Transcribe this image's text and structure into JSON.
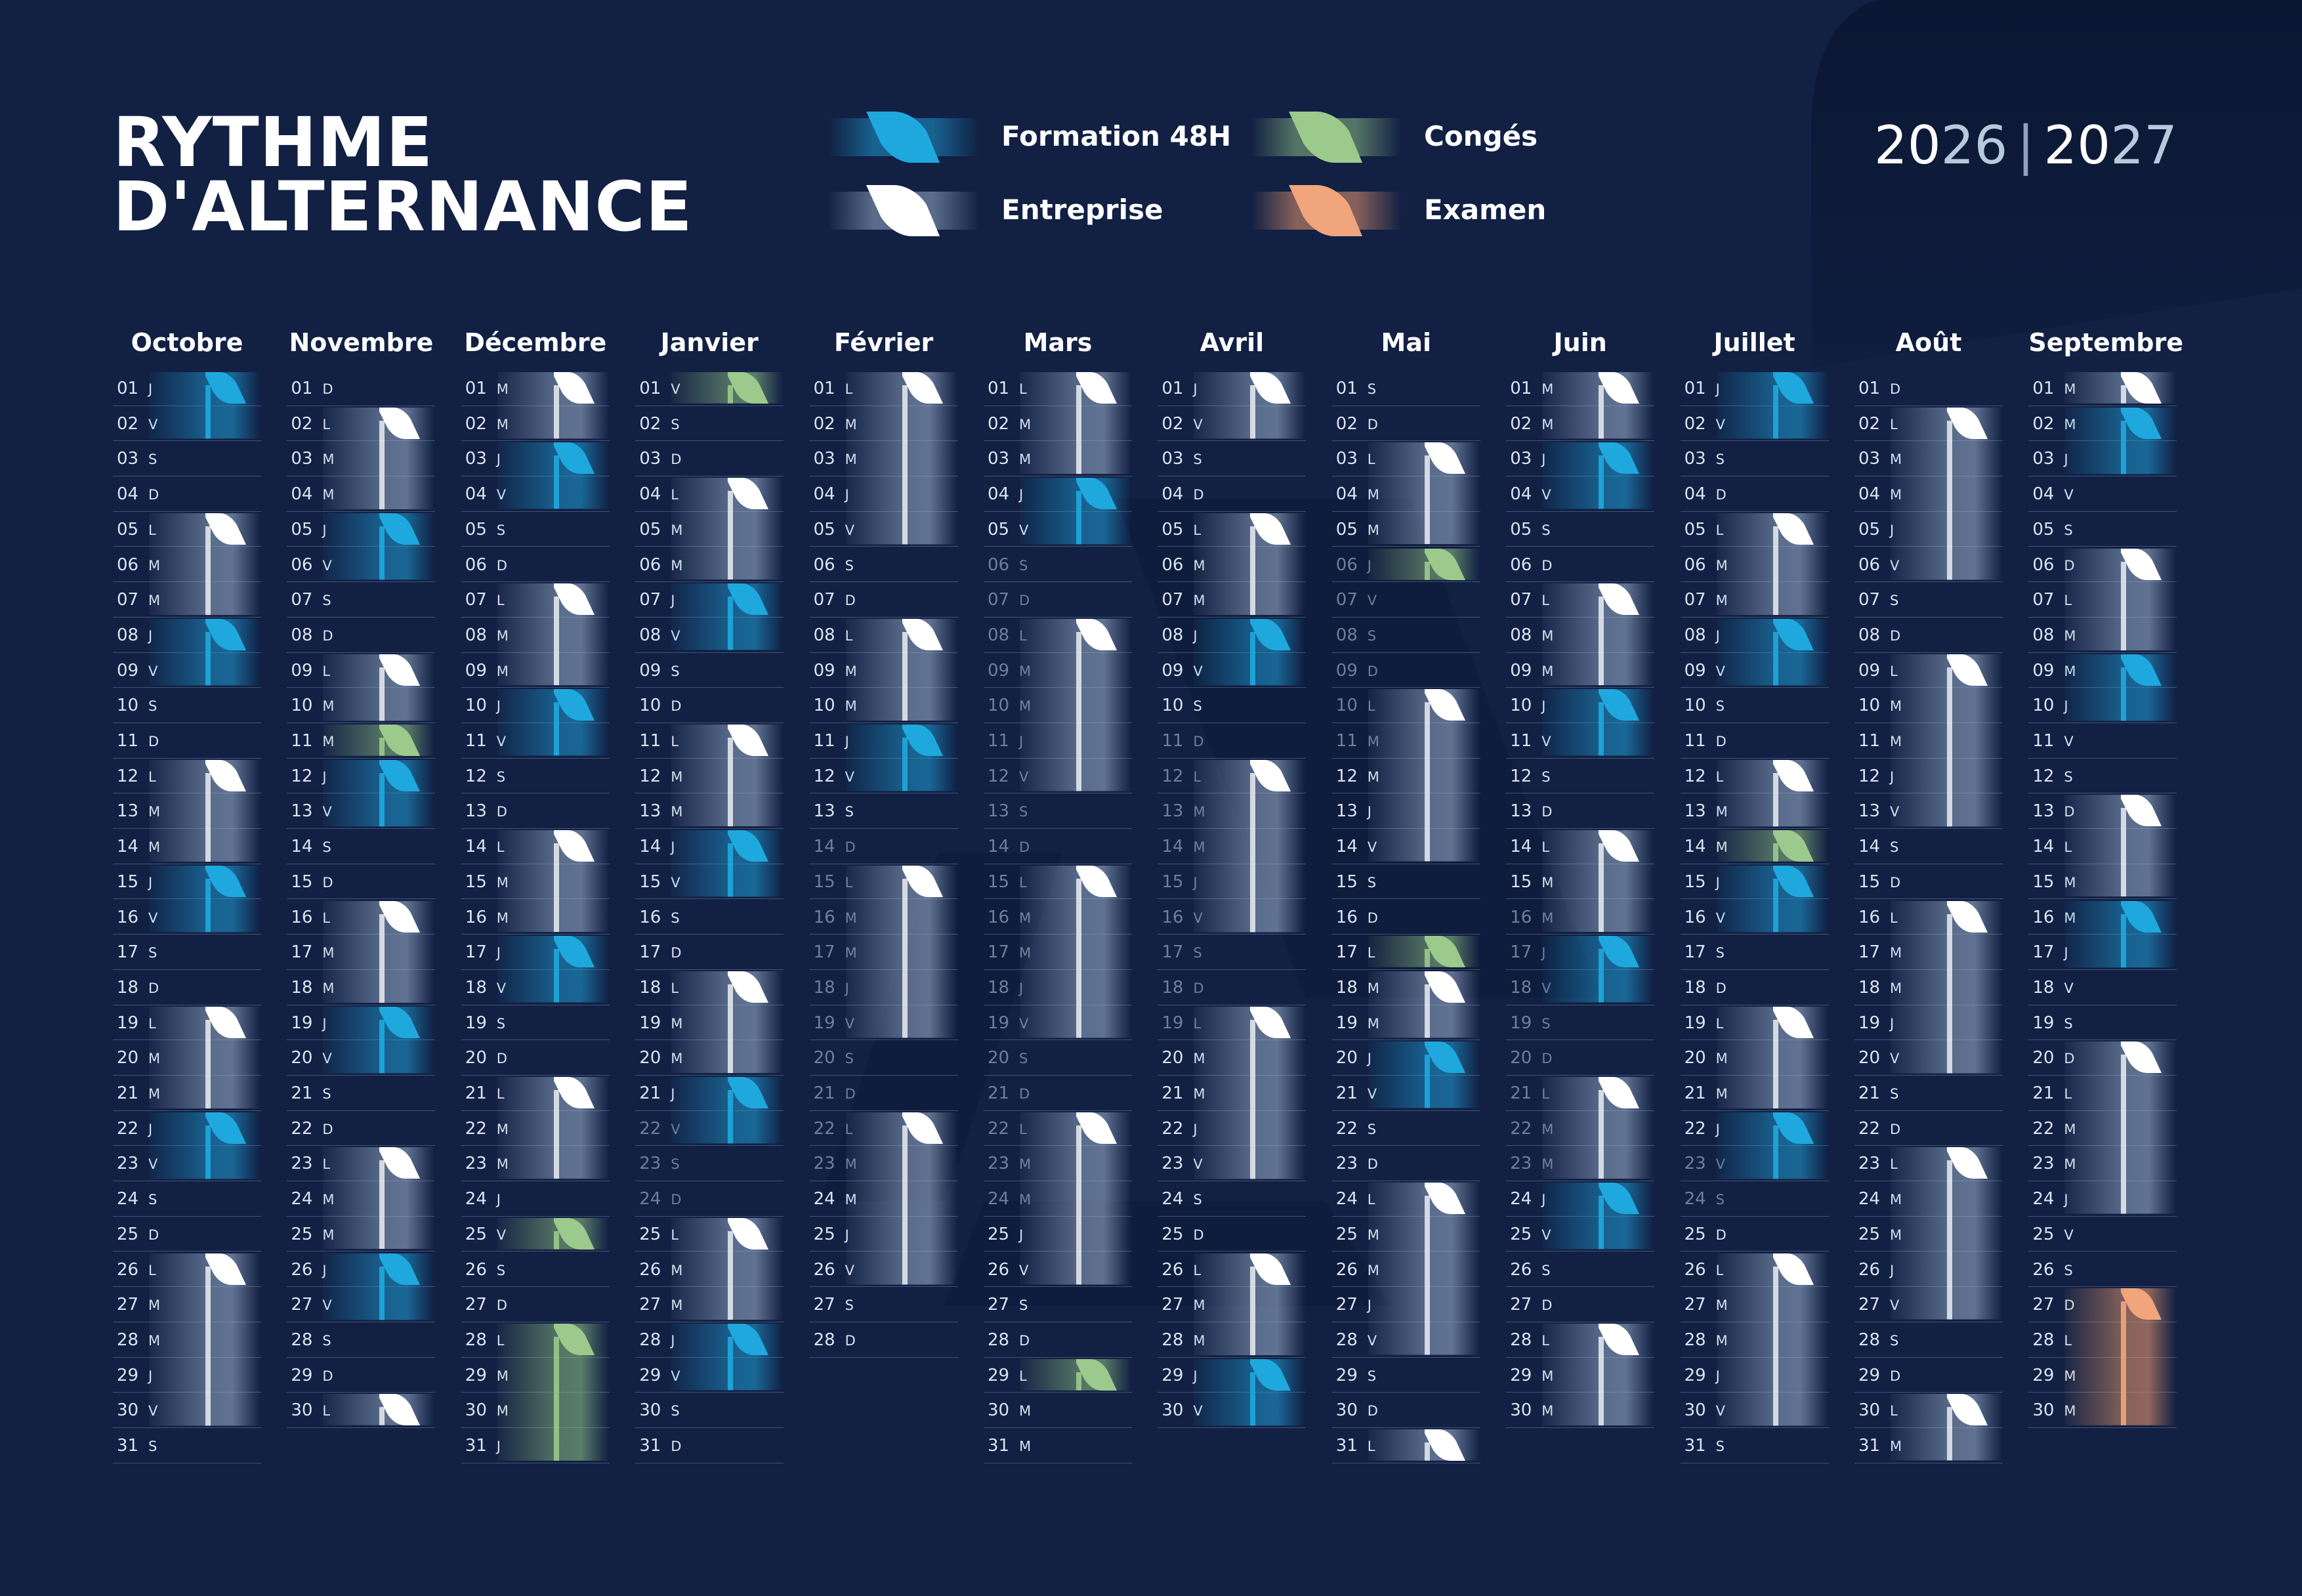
{
  "title": {
    "line1": "RYTHME",
    "line2": "D'ALTERNANCE"
  },
  "years": {
    "a_head": "20",
    "a_tail": "26",
    "separator": "|",
    "b_head": "20",
    "b_tail": "27"
  },
  "legend": [
    {
      "key": "formation",
      "label": "Formation 48H",
      "color": "#1fa8dd"
    },
    {
      "key": "conges",
      "label": "Congés",
      "color": "#9cc98c"
    },
    {
      "key": "entreprise",
      "label": "Entreprise",
      "color": "#ffffff"
    },
    {
      "key": "examen",
      "label": "Examen",
      "color": "#f0a57c"
    }
  ],
  "months": [
    {
      "name": "Octobre",
      "start": 4,
      "days": 31,
      "periods": [
        {
          "type": "F",
          "start": 1,
          "len": 2
        },
        {
          "type": "E",
          "start": 5,
          "len": 3
        },
        {
          "type": "F",
          "start": 8,
          "len": 2
        },
        {
          "type": "E",
          "start": 12,
          "len": 3
        },
        {
          "type": "F",
          "start": 15,
          "len": 2
        },
        {
          "type": "E",
          "start": 19,
          "len": 3
        },
        {
          "type": "F",
          "start": 22,
          "len": 2
        },
        {
          "type": "E",
          "start": 26,
          "len": 5
        }
      ],
      "dim": []
    },
    {
      "name": "Novembre",
      "start": 0,
      "days": 30,
      "periods": [
        {
          "type": "E",
          "start": 2,
          "len": 3
        },
        {
          "type": "F",
          "start": 5,
          "len": 2
        },
        {
          "type": "E",
          "start": 9,
          "len": 2
        },
        {
          "type": "C",
          "start": 11,
          "len": 1
        },
        {
          "type": "F",
          "start": 12,
          "len": 2
        },
        {
          "type": "E",
          "start": 16,
          "len": 3
        },
        {
          "type": "F",
          "start": 19,
          "len": 2
        },
        {
          "type": "E",
          "start": 23,
          "len": 3
        },
        {
          "type": "F",
          "start": 26,
          "len": 2
        },
        {
          "type": "E",
          "start": 30,
          "len": 1
        }
      ],
      "dim": []
    },
    {
      "name": "Décembre",
      "start": 2,
      "days": 31,
      "periods": [
        {
          "type": "E",
          "start": 1,
          "len": 2
        },
        {
          "type": "F",
          "start": 3,
          "len": 2
        },
        {
          "type": "E",
          "start": 7,
          "len": 3
        },
        {
          "type": "F",
          "start": 10,
          "len": 2
        },
        {
          "type": "E",
          "start": 14,
          "len": 3
        },
        {
          "type": "F",
          "start": 17,
          "len": 2
        },
        {
          "type": "E",
          "start": 21,
          "len": 3
        },
        {
          "type": "C",
          "start": 25,
          "len": 1
        },
        {
          "type": "C",
          "start": 28,
          "len": 4
        }
      ],
      "dim": []
    },
    {
      "name": "Janvier",
      "start": 5,
      "days": 31,
      "periods": [
        {
          "type": "C",
          "start": 1,
          "len": 1
        },
        {
          "type": "E",
          "start": 4,
          "len": 3
        },
        {
          "type": "F",
          "start": 7,
          "len": 2
        },
        {
          "type": "E",
          "start": 11,
          "len": 3
        },
        {
          "type": "F",
          "start": 14,
          "len": 2
        },
        {
          "type": "E",
          "start": 18,
          "len": 3
        },
        {
          "type": "F",
          "start": 21,
          "len": 2
        },
        {
          "type": "E",
          "start": 25,
          "len": 3
        },
        {
          "type": "F",
          "start": 28,
          "len": 2
        }
      ],
      "dim": [
        22,
        23,
        24
      ]
    },
    {
      "name": "Février",
      "start": 1,
      "days": 28,
      "periods": [
        {
          "type": "E",
          "start": 1,
          "len": 5
        },
        {
          "type": "E",
          "start": 8,
          "len": 3
        },
        {
          "type": "F",
          "start": 11,
          "len": 2
        },
        {
          "type": "E",
          "start": 15,
          "len": 5
        },
        {
          "type": "E",
          "start": 22,
          "len": 5
        }
      ],
      "dim": [
        14,
        15,
        16,
        17,
        18,
        19,
        20,
        21,
        22,
        23
      ]
    },
    {
      "name": "Mars",
      "start": 1,
      "days": 31,
      "periods": [
        {
          "type": "E",
          "start": 1,
          "len": 3
        },
        {
          "type": "F",
          "start": 4,
          "len": 2
        },
        {
          "type": "E",
          "start": 8,
          "len": 5
        },
        {
          "type": "E",
          "start": 15,
          "len": 5
        },
        {
          "type": "E",
          "start": 22,
          "len": 5
        },
        {
          "type": "C",
          "start": 29,
          "len": 1
        }
      ],
      "dim": [
        6,
        7,
        8,
        9,
        10,
        11,
        12,
        13,
        14,
        15,
        16,
        17,
        18,
        19,
        20,
        21,
        22,
        23,
        24
      ]
    },
    {
      "name": "Avril",
      "start": 4,
      "days": 30,
      "periods": [
        {
          "type": "E",
          "start": 1,
          "len": 2
        },
        {
          "type": "E",
          "start": 5,
          "len": 3
        },
        {
          "type": "F",
          "start": 8,
          "len": 2
        },
        {
          "type": "E",
          "start": 12,
          "len": 5
        },
        {
          "type": "E",
          "start": 19,
          "len": 5
        },
        {
          "type": "E",
          "start": 26,
          "len": 3
        },
        {
          "type": "F",
          "start": 29,
          "len": 2
        }
      ],
      "dim": [
        11,
        12,
        13,
        14,
        15,
        16,
        17,
        18,
        19
      ]
    },
    {
      "name": "Mai",
      "start": 6,
      "days": 31,
      "periods": [
        {
          "type": "E",
          "start": 3,
          "len": 3
        },
        {
          "type": "C",
          "start": 6,
          "len": 1
        },
        {
          "type": "E",
          "start": 10,
          "len": 5
        },
        {
          "type": "C",
          "start": 17,
          "len": 1
        },
        {
          "type": "E",
          "start": 18,
          "len": 2
        },
        {
          "type": "F",
          "start": 20,
          "len": 2
        },
        {
          "type": "E",
          "start": 24,
          "len": 5
        },
        {
          "type": "E",
          "start": 31,
          "len": 1
        }
      ],
      "dim": [
        6,
        7,
        8,
        9,
        10,
        11
      ]
    },
    {
      "name": "Juin",
      "start": 2,
      "days": 30,
      "periods": [
        {
          "type": "E",
          "start": 1,
          "len": 2
        },
        {
          "type": "F",
          "start": 3,
          "len": 2
        },
        {
          "type": "E",
          "start": 7,
          "len": 3
        },
        {
          "type": "F",
          "start": 10,
          "len": 2
        },
        {
          "type": "E",
          "start": 14,
          "len": 3
        },
        {
          "type": "F",
          "start": 17,
          "len": 2
        },
        {
          "type": "E",
          "start": 21,
          "len": 3
        },
        {
          "type": "F",
          "start": 24,
          "len": 2
        },
        {
          "type": "E",
          "start": 28,
          "len": 3
        }
      ],
      "dim": [
        16,
        17,
        18,
        19,
        20,
        21,
        22,
        23
      ]
    },
    {
      "name": "Juillet",
      "start": 4,
      "days": 31,
      "periods": [
        {
          "type": "F",
          "start": 1,
          "len": 2
        },
        {
          "type": "E",
          "start": 5,
          "len": 3
        },
        {
          "type": "F",
          "start": 8,
          "len": 2
        },
        {
          "type": "E",
          "start": 12,
          "len": 2
        },
        {
          "type": "C",
          "start": 14,
          "len": 1
        },
        {
          "type": "F",
          "start": 15,
          "len": 2
        },
        {
          "type": "E",
          "start": 19,
          "len": 3
        },
        {
          "type": "F",
          "start": 22,
          "len": 2
        },
        {
          "type": "E",
          "start": 26,
          "len": 5
        }
      ],
      "dim": [
        23,
        24
      ]
    },
    {
      "name": "Août",
      "start": 0,
      "days": 31,
      "periods": [
        {
          "type": "E",
          "start": 2,
          "len": 5
        },
        {
          "type": "E",
          "start": 9,
          "len": 5
        },
        {
          "type": "E",
          "start": 16,
          "len": 5
        },
        {
          "type": "E",
          "start": 23,
          "len": 5
        },
        {
          "type": "E",
          "start": 30,
          "len": 2
        }
      ],
      "dim": []
    },
    {
      "name": "Septembre",
      "start": 2,
      "days": 30,
      "periods": [
        {
          "type": "E",
          "start": 1,
          "len": 1
        },
        {
          "type": "F",
          "start": 2,
          "len": 2
        },
        {
          "type": "E",
          "start": 6,
          "len": 3
        },
        {
          "type": "F",
          "start": 9,
          "len": 2
        },
        {
          "type": "E",
          "start": 13,
          "len": 3
        },
        {
          "type": "F",
          "start": 16,
          "len": 2
        },
        {
          "type": "E",
          "start": 20,
          "len": 5
        },
        {
          "type": "X",
          "start": 27,
          "len": 4
        }
      ],
      "dim": []
    }
  ],
  "weekdays": [
    "D",
    "L",
    "M",
    "M",
    "J",
    "V",
    "S"
  ]
}
